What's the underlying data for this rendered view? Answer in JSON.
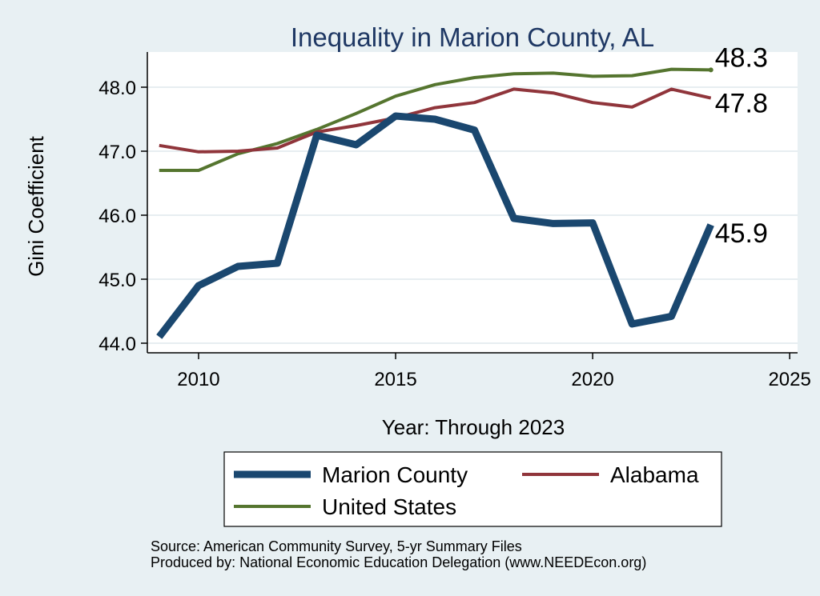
{
  "chart_data": {
    "type": "line",
    "title": "Inequality in Marion County, AL",
    "xlabel": "Year: Through 2023",
    "ylabel": "Gini Coefficient",
    "xlim": [
      2008.7,
      2025.2
    ],
    "ylim": [
      43.85,
      48.55
    ],
    "x_ticks": [
      2010,
      2015,
      2020,
      2025
    ],
    "y_ticks": [
      44.0,
      45.0,
      46.0,
      47.0,
      48.0
    ],
    "y_tick_labels": [
      "44.0",
      "45.0",
      "46.0",
      "47.0",
      "48.0"
    ],
    "x": [
      2009,
      2010,
      2011,
      2012,
      2013,
      2014,
      2015,
      2016,
      2017,
      2018,
      2019,
      2020,
      2021,
      2022,
      2023
    ],
    "series": [
      {
        "name": "Marion County",
        "color": "#1a476f",
        "end_label": "45.9",
        "values": [
          44.1,
          44.9,
          45.2,
          45.25,
          47.25,
          47.1,
          47.55,
          47.5,
          47.33,
          45.95,
          45.87,
          45.88,
          44.3,
          44.42,
          45.85
        ]
      },
      {
        "name": "Alabama",
        "color": "#90353b",
        "end_label": "47.8",
        "values": [
          47.09,
          46.99,
          47.0,
          47.05,
          47.3,
          47.4,
          47.52,
          47.68,
          47.76,
          47.97,
          47.91,
          47.76,
          47.69,
          47.97,
          47.83
        ]
      },
      {
        "name": "United States",
        "color": "#55752f",
        "end_label": "48.3",
        "values": [
          46.7,
          46.7,
          46.96,
          47.12,
          47.34,
          47.59,
          47.86,
          48.04,
          48.15,
          48.21,
          48.22,
          48.17,
          48.18,
          48.28,
          48.27
        ]
      }
    ],
    "legend_position": "bottom",
    "source_lines": [
      "Source: American Community Survey, 5-yr Summary Files",
      "Produced by: National Economic Education Delegation (www.NEEDEcon.org)"
    ]
  }
}
